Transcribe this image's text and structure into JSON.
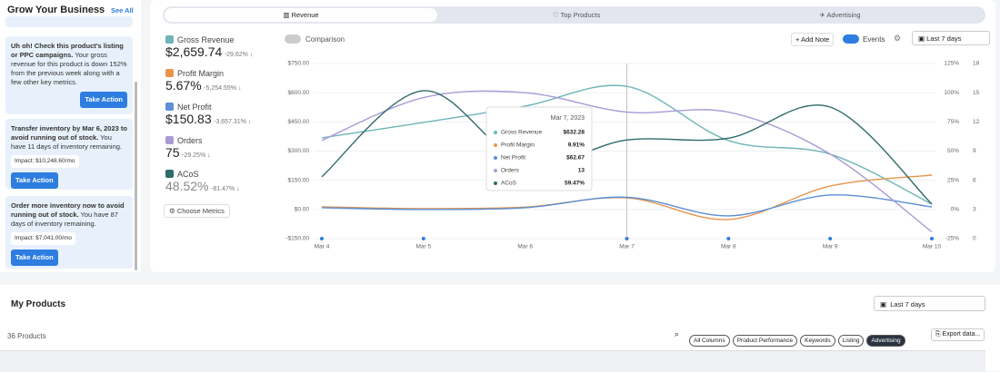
{
  "sidebar": {
    "title": "Grow Your Business",
    "see_all": "See All",
    "cards": [
      {
        "headline": "Uh oh! Check this product's listing or PPC campaigns.",
        "body": "Your gross revenue for this product is down 152% from the previous week along with a few other key metrics.",
        "button": "Take Action"
      },
      {
        "headline": "Transfer inventory by Mar 6, 2023 to avoid running out of stock.",
        "body": "You have 11 days of inventory remaining.",
        "impact": "Impact: $10,248.60/mo",
        "button": "Take Action"
      },
      {
        "headline": "Order more inventory now to avoid running out of stock.",
        "body": "You have 87 days of inventory remaining.",
        "impact": "Impact: $7,041.00/mo",
        "button": "Take Action"
      }
    ]
  },
  "tabs": [
    "Revenue",
    "Top Products",
    "Advertising"
  ],
  "metrics": [
    {
      "name": "Gross Revenue",
      "value": "$2,659.74",
      "change": "-29.62% ↓"
    },
    {
      "name": "Profit Margin",
      "value": "5.67%",
      "change": "-5,254.55% ↓"
    },
    {
      "name": "Net Profit",
      "value": "$150.83",
      "change": "-3,657.31% ↓"
    },
    {
      "name": "Orders",
      "value": "75",
      "change": "-29.25% ↓"
    },
    {
      "name": "ACoS",
      "value": "48.52%",
      "change": "-81.47% ↓"
    }
  ],
  "choose_metrics": "Choose Metrics",
  "toolbar": {
    "comparison": "Comparison",
    "add_note": "+ Add Note",
    "events": "Events",
    "range": "Last 7 days"
  },
  "chart_data": {
    "type": "line",
    "categories": [
      "Mar 4",
      "Mar 5",
      "Mar 6",
      "Mar 7",
      "Mar 8",
      "Mar 9",
      "Mar 10"
    ],
    "series": [
      {
        "name": "Gross Revenue",
        "color": "#6fb5b8",
        "values": [
          368,
          447,
          531,
          632.28,
          354,
          284,
          27
        ]
      },
      {
        "name": "Profit Margin",
        "color": "#e8954a",
        "axis": "y2",
        "values": [
          2.2,
          0.7,
          2,
          9.91,
          -8.6,
          20,
          29.4
        ]
      },
      {
        "name": "Net Profit",
        "color": "#5b8fd6",
        "values": [
          9,
          0,
          9,
          62.67,
          -33,
          74,
          13
        ]
      },
      {
        "name": "Orders",
        "color": "#a99bd6",
        "axis": "y3",
        "values": [
          10.1,
          14.5,
          15,
          13,
          13,
          8.7,
          0.7
        ]
      },
      {
        "name": "ACoS",
        "color": "#2f6b6b",
        "axis": "y2",
        "values": [
          28,
          101.7,
          39.5,
          59.47,
          61,
          87.7,
          4.6
        ]
      }
    ],
    "ylim": [
      -150,
      750
    ],
    "yticks": [
      {
        "value": 750,
        "label": "$750.00"
      },
      {
        "value": 600,
        "label": "$600.00"
      },
      {
        "value": 450,
        "label": "$450.00"
      },
      {
        "value": 300,
        "label": "$300.00"
      },
      {
        "value": 150,
        "label": "$150.00"
      },
      {
        "value": 0,
        "label": "$0.00"
      },
      {
        "value": -150,
        "label": "-$150.00"
      }
    ],
    "y2lim": [
      -25,
      125
    ],
    "y2ticks": [
      {
        "value": 125,
        "label": "125%"
      },
      {
        "value": 100,
        "label": "100%"
      },
      {
        "value": 75,
        "label": "75%"
      },
      {
        "value": 50,
        "label": "50%"
      },
      {
        "value": 25,
        "label": "25%"
      },
      {
        "value": 0,
        "label": "0%"
      },
      {
        "value": -25,
        "label": "-25%"
      }
    ],
    "y3lim": [
      0,
      18
    ],
    "y3ticks": [
      18,
      15,
      12,
      9,
      6,
      3,
      0
    ],
    "grid": true,
    "tooltip": {
      "title": "Mar 7, 2023",
      "values": [
        "$632.28",
        "9.91%",
        "$62.67",
        "13",
        "59.47%"
      ]
    }
  },
  "products": {
    "title": "My Products",
    "range": "Last 7 days",
    "count": "36 Products",
    "chips": [
      "All Columns",
      "Product Performance",
      "Keywords",
      "Listing",
      "Advertising"
    ],
    "export": "Export data..."
  }
}
